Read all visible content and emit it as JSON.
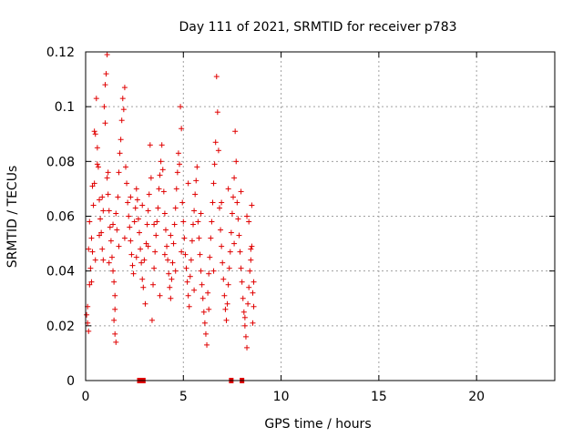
{
  "chart_data": {
    "type": "scatter",
    "title": "Day 111 of 2021, SRMTID for receiver p783",
    "xlabel": "GPS time / hours",
    "ylabel": "SRMTID / TECUs",
    "xlim": [
      0,
      24
    ],
    "ylim": [
      0,
      0.12
    ],
    "x_ticks": [
      0,
      5,
      10,
      15,
      20
    ],
    "x_tick_labels": [
      "0",
      "5",
      "10",
      "15",
      "20"
    ],
    "y_ticks": [
      0,
      0.02,
      0.04,
      0.06,
      0.08,
      0.1,
      0.12
    ],
    "y_tick_labels": [
      "0",
      "0.02",
      "0.04",
      "0.06",
      "0.08",
      "0.1",
      "0.12"
    ],
    "grid": true,
    "legend": "none",
    "marker": "plus",
    "color": "#e00000",
    "series": [
      {
        "points": [
          [
            0.05,
            0.024
          ],
          [
            0.1,
            0.021
          ],
          [
            0.15,
            0.018
          ],
          [
            0.1,
            0.027
          ],
          [
            0.2,
            0.035
          ],
          [
            0.25,
            0.041
          ],
          [
            0.3,
            0.052
          ],
          [
            0.35,
            0.047
          ],
          [
            0.4,
            0.064
          ],
          [
            0.45,
            0.072
          ],
          [
            0.5,
            0.09
          ],
          [
            0.45,
            0.091
          ],
          [
            0.55,
            0.103
          ],
          [
            0.6,
            0.085
          ],
          [
            0.65,
            0.078
          ],
          [
            0.7,
            0.066
          ],
          [
            0.75,
            0.059
          ],
          [
            0.8,
            0.054
          ],
          [
            0.85,
            0.048
          ],
          [
            0.9,
            0.044
          ],
          [
            0.95,
            0.1
          ],
          [
            1.0,
            0.108
          ],
          [
            1.05,
            0.112
          ],
          [
            1.0,
            0.094
          ],
          [
            1.1,
            0.119
          ],
          [
            1.1,
            0.074
          ],
          [
            1.15,
            0.068
          ],
          [
            1.2,
            0.062
          ],
          [
            1.25,
            0.056
          ],
          [
            1.3,
            0.051
          ],
          [
            1.35,
            0.045
          ],
          [
            1.4,
            0.04
          ],
          [
            1.45,
            0.036
          ],
          [
            1.5,
            0.031
          ],
          [
            1.5,
            0.026
          ],
          [
            1.45,
            0.022
          ],
          [
            1.5,
            0.017
          ],
          [
            1.55,
            0.014
          ],
          [
            1.6,
            0.055
          ],
          [
            1.65,
            0.067
          ],
          [
            1.7,
            0.076
          ],
          [
            1.75,
            0.083
          ],
          [
            1.8,
            0.088
          ],
          [
            1.85,
            0.095
          ],
          [
            1.9,
            0.103
          ],
          [
            1.95,
            0.099
          ],
          [
            2.0,
            0.107
          ],
          [
            2.05,
            0.078
          ],
          [
            2.1,
            0.072
          ],
          [
            2.15,
            0.065
          ],
          [
            2.2,
            0.06
          ],
          [
            2.25,
            0.056
          ],
          [
            2.3,
            0.051
          ],
          [
            2.35,
            0.046
          ],
          [
            2.4,
            0.042
          ],
          [
            2.45,
            0.039
          ],
          [
            2.5,
            0.058
          ],
          [
            2.55,
            0.063
          ],
          [
            2.6,
            0.07
          ],
          [
            2.65,
            0.066
          ],
          [
            2.7,
            0.059
          ],
          [
            2.75,
            0.054
          ],
          [
            2.8,
            0.048
          ],
          [
            2.85,
            0.043
          ],
          [
            2.9,
            0.037
          ],
          [
            2.95,
            0.034
          ],
          [
            3.0,
            0.044
          ],
          [
            3.05,
            0.028
          ],
          [
            3.1,
            0.05
          ],
          [
            3.15,
            0.057
          ],
          [
            3.2,
            0.062
          ],
          [
            3.25,
            0.068
          ],
          [
            3.3,
            0.086
          ],
          [
            3.35,
            0.074
          ],
          [
            3.4,
            0.022
          ],
          [
            3.45,
            0.035
          ],
          [
            3.5,
            0.041
          ],
          [
            3.55,
            0.047
          ],
          [
            3.6,
            0.053
          ],
          [
            3.65,
            0.058
          ],
          [
            3.7,
            0.063
          ],
          [
            3.75,
            0.07
          ],
          [
            3.8,
            0.075
          ],
          [
            3.85,
            0.08
          ],
          [
            3.9,
            0.086
          ],
          [
            3.95,
            0.077
          ],
          [
            4.0,
            0.069
          ],
          [
            4.05,
            0.061
          ],
          [
            4.1,
            0.055
          ],
          [
            4.15,
            0.049
          ],
          [
            4.2,
            0.044
          ],
          [
            4.25,
            0.039
          ],
          [
            4.3,
            0.034
          ],
          [
            4.35,
            0.03
          ],
          [
            4.4,
            0.037
          ],
          [
            4.45,
            0.043
          ],
          [
            4.5,
            0.05
          ],
          [
            4.55,
            0.057
          ],
          [
            4.6,
            0.063
          ],
          [
            4.65,
            0.07
          ],
          [
            4.7,
            0.076
          ],
          [
            4.75,
            0.083
          ],
          [
            4.8,
            0.079
          ],
          [
            4.85,
            0.1
          ],
          [
            4.9,
            0.092
          ],
          [
            4.95,
            0.065
          ],
          [
            5.0,
            0.058
          ],
          [
            5.05,
            0.052
          ],
          [
            5.1,
            0.046
          ],
          [
            5.15,
            0.041
          ],
          [
            5.2,
            0.036
          ],
          [
            5.25,
            0.031
          ],
          [
            5.3,
            0.027
          ],
          [
            5.35,
            0.038
          ],
          [
            5.4,
            0.044
          ],
          [
            5.45,
            0.051
          ],
          [
            5.5,
            0.057
          ],
          [
            5.55,
            0.062
          ],
          [
            5.6,
            0.068
          ],
          [
            5.65,
            0.073
          ],
          [
            5.7,
            0.078
          ],
          [
            5.75,
            0.058
          ],
          [
            5.8,
            0.052
          ],
          [
            5.85,
            0.046
          ],
          [
            5.9,
            0.04
          ],
          [
            5.95,
            0.035
          ],
          [
            6.0,
            0.03
          ],
          [
            6.05,
            0.025
          ],
          [
            6.1,
            0.021
          ],
          [
            6.15,
            0.017
          ],
          [
            6.2,
            0.013
          ],
          [
            6.25,
            0.032
          ],
          [
            6.3,
            0.039
          ],
          [
            6.35,
            0.045
          ],
          [
            6.4,
            0.052
          ],
          [
            6.45,
            0.058
          ],
          [
            6.5,
            0.065
          ],
          [
            6.55,
            0.072
          ],
          [
            6.6,
            0.079
          ],
          [
            6.65,
            0.087
          ],
          [
            6.7,
            0.111
          ],
          [
            6.75,
            0.098
          ],
          [
            6.8,
            0.084
          ],
          [
            6.85,
            0.063
          ],
          [
            6.9,
            0.055
          ],
          [
            6.95,
            0.049
          ],
          [
            7.0,
            0.043
          ],
          [
            7.05,
            0.037
          ],
          [
            7.1,
            0.031
          ],
          [
            7.15,
            0.026
          ],
          [
            7.2,
            0.022
          ],
          [
            7.25,
            0.028
          ],
          [
            7.3,
            0.035
          ],
          [
            7.35,
            0.041
          ],
          [
            7.4,
            0.047
          ],
          [
            7.45,
            0.054
          ],
          [
            7.5,
            0.061
          ],
          [
            7.55,
            0.067
          ],
          [
            7.6,
            0.074
          ],
          [
            7.65,
            0.091
          ],
          [
            7.7,
            0.08
          ],
          [
            7.75,
            0.065
          ],
          [
            7.8,
            0.059
          ],
          [
            7.85,
            0.053
          ],
          [
            7.9,
            0.047
          ],
          [
            7.95,
            0.041
          ],
          [
            8.0,
            0.036
          ],
          [
            8.05,
            0.03
          ],
          [
            8.1,
            0.025
          ],
          [
            8.15,
            0.02
          ],
          [
            8.2,
            0.016
          ],
          [
            8.25,
            0.012
          ],
          [
            8.3,
            0.028
          ],
          [
            8.35,
            0.034
          ],
          [
            8.4,
            0.04
          ],
          [
            8.45,
            0.048
          ],
          [
            8.5,
            0.064
          ],
          [
            8.5,
            0.049
          ],
          [
            8.55,
            0.032
          ],
          [
            8.6,
            0.027
          ],
          [
            8.6,
            0.036
          ],
          [
            8.55,
            0.021
          ],
          [
            8.45,
            0.044
          ],
          [
            8.35,
            0.058
          ],
          [
            8.25,
            0.06
          ],
          [
            8.15,
            0.023
          ],
          [
            7.95,
            0.069
          ],
          [
            7.6,
            0.05
          ],
          [
            7.3,
            0.07
          ],
          [
            6.95,
            0.065
          ],
          [
            6.55,
            0.04
          ],
          [
            6.3,
            0.026
          ],
          [
            5.9,
            0.061
          ],
          [
            5.55,
            0.033
          ],
          [
            5.25,
            0.072
          ],
          [
            4.9,
            0.047
          ],
          [
            4.6,
            0.04
          ],
          [
            4.35,
            0.053
          ],
          [
            4.05,
            0.046
          ],
          [
            3.8,
            0.031
          ],
          [
            3.5,
            0.057
          ],
          [
            3.2,
            0.049
          ],
          [
            2.9,
            0.064
          ],
          [
            2.6,
            0.045
          ],
          [
            2.3,
            0.067
          ],
          [
            2.0,
            0.052
          ],
          [
            1.7,
            0.049
          ],
          [
            1.4,
            0.057
          ],
          [
            1.2,
            0.043
          ],
          [
            0.9,
            0.062
          ],
          [
            0.7,
            0.053
          ],
          [
            0.5,
            0.044
          ],
          [
            0.3,
            0.036
          ],
          [
            0.2,
            0.058
          ],
          [
            0.15,
            0.048
          ],
          [
            0.35,
            0.071
          ],
          [
            0.6,
            0.079
          ],
          [
            0.85,
            0.067
          ],
          [
            1.15,
            0.076
          ],
          [
            1.55,
            0.061
          ]
        ]
      }
    ],
    "gap_markers_x": [
      2.75,
      2.95,
      7.45,
      8.0
    ]
  }
}
